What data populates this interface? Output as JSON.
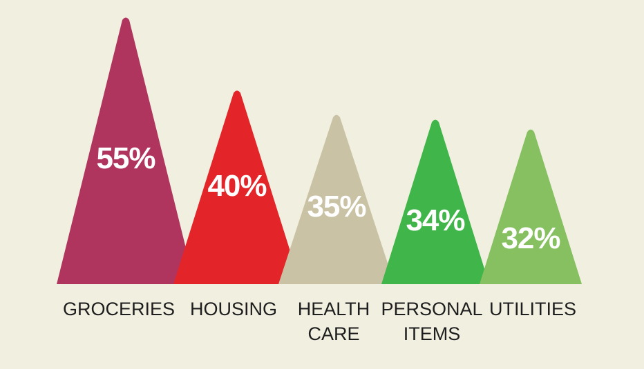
{
  "chart_data": {
    "type": "bar",
    "categories": [
      [
        "GROCERIES"
      ],
      [
        "HOUSING"
      ],
      [
        "HEALTH",
        "CARE"
      ],
      [
        "PERSONAL",
        "ITEMS"
      ],
      [
        "UTILITIES"
      ]
    ],
    "values": [
      55,
      40,
      35,
      34,
      32
    ],
    "value_labels": [
      "55%",
      "40%",
      "35%",
      "34%",
      "32%"
    ],
    "colors": [
      "#b0355e",
      "#e32428",
      "#c9c2a4",
      "#3fb54a",
      "#86c061"
    ],
    "ylim": [
      0,
      55
    ],
    "grid": false,
    "legend": "none"
  }
}
